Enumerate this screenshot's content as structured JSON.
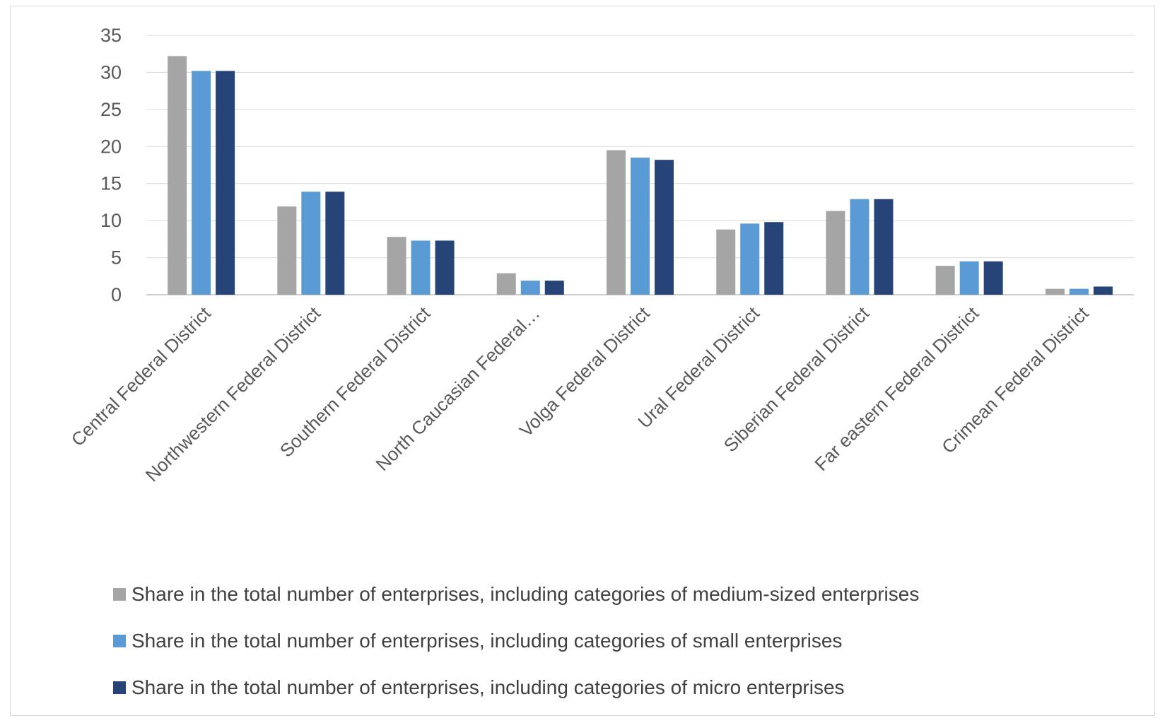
{
  "chart_data": {
    "type": "bar",
    "categories": [
      "Central Federal District",
      "Northwestern Federal District",
      "Southern Federal District",
      "North Caucasian Federal…",
      "Volga Federal District",
      "Ural Federal District",
      "Siberian Federal District",
      "Far eastern Federal District",
      "Crimean Federal District"
    ],
    "series": [
      {
        "name": "Share in the total number of enterprises, including categories of medium-sized enterprises",
        "color": "#a5a5a5",
        "values": [
          32.2,
          11.9,
          7.8,
          2.9,
          19.5,
          8.8,
          11.3,
          3.9,
          0.8
        ]
      },
      {
        "name": "Share in the total number of enterprises, including categories of small enterprises",
        "color": "#5b9bd5",
        "values": [
          30.2,
          13.9,
          7.3,
          1.9,
          18.5,
          9.6,
          12.9,
          4.5,
          0.8
        ]
      },
      {
        "name": "Share in the total number of enterprises, including categories of micro enterprises",
        "color": "#264478",
        "values": [
          30.2,
          13.9,
          7.3,
          1.9,
          18.2,
          9.8,
          12.9,
          4.5,
          1.1
        ]
      }
    ],
    "yticks": [
      0,
      5,
      10,
      15,
      20,
      25,
      30,
      35
    ],
    "ylim": [
      0,
      35
    ],
    "grid": true,
    "legend_position": "bottom",
    "title": "",
    "xlabel": "",
    "ylabel": ""
  }
}
